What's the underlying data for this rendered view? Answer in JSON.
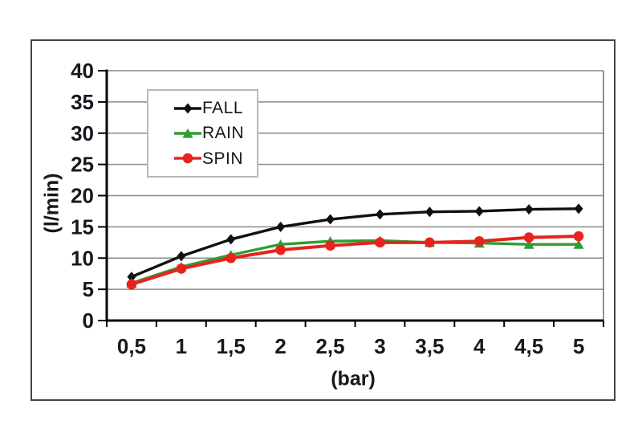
{
  "chart_data": {
    "type": "line",
    "title": "",
    "xlabel": "(bar)",
    "ylabel": "(l/min)",
    "categories": [
      "0,5",
      "1",
      "1,5",
      "2",
      "2,5",
      "3",
      "3,5",
      "4",
      "4,5",
      "5"
    ],
    "categories_numeric": [
      0.5,
      1,
      1.5,
      2,
      2.5,
      3,
      3.5,
      4,
      4.5,
      5
    ],
    "y_ticks": [
      0,
      5,
      10,
      15,
      20,
      25,
      30,
      35,
      40
    ],
    "ylim": [
      0,
      40
    ],
    "grid": "horizontal",
    "legend_position": "upper-left-inside",
    "series": [
      {
        "name": "FALL",
        "marker": "diamond",
        "color": "#101010",
        "values": [
          7.0,
          10.3,
          13.0,
          15.0,
          16.2,
          17.0,
          17.4,
          17.5,
          17.8,
          17.9
        ]
      },
      {
        "name": "RAIN",
        "marker": "triangle",
        "color": "#2e9e34",
        "values": [
          6.0,
          8.6,
          10.5,
          12.2,
          12.7,
          12.8,
          12.5,
          12.4,
          12.2,
          12.2
        ]
      },
      {
        "name": "SPIN",
        "marker": "circle",
        "color": "#e7231e",
        "values": [
          5.8,
          8.3,
          10.0,
          11.3,
          12.0,
          12.5,
          12.5,
          12.7,
          13.3,
          13.5
        ]
      }
    ],
    "colors": {
      "grid": "#8a8a8a",
      "plot_right_border": "#6f6f6f",
      "axis": "#000000",
      "text": "#17171e",
      "frame_border": "#454545",
      "legend_border": "#b9b9b9",
      "background": "#ffffff"
    }
  }
}
